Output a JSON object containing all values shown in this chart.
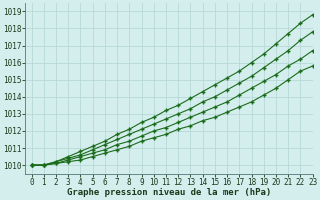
{
  "xlabel": "Graphe pression niveau de la mer (hPa)",
  "xlim": [
    -0.5,
    23.0
  ],
  "ylim": [
    1009.5,
    1019.5
  ],
  "yticks": [
    1010,
    1011,
    1012,
    1013,
    1014,
    1015,
    1016,
    1017,
    1018,
    1019
  ],
  "xticks": [
    0,
    1,
    2,
    3,
    4,
    5,
    6,
    7,
    8,
    9,
    10,
    11,
    12,
    13,
    14,
    15,
    16,
    17,
    18,
    19,
    20,
    21,
    22,
    23
  ],
  "background_color": "#d4eeee",
  "grid_color": "#b8d8d8",
  "lines": [
    [
      1010.0,
      1010.0,
      1010.1,
      1010.2,
      1010.3,
      1010.5,
      1010.7,
      1010.9,
      1011.1,
      1011.4,
      1011.6,
      1011.8,
      1012.1,
      1012.3,
      1012.6,
      1012.8,
      1013.1,
      1013.4,
      1013.7,
      1014.1,
      1014.5,
      1015.0,
      1015.5,
      1015.8
    ],
    [
      1010.0,
      1010.0,
      1010.1,
      1010.3,
      1010.5,
      1010.7,
      1010.9,
      1011.2,
      1011.4,
      1011.7,
      1012.0,
      1012.2,
      1012.5,
      1012.8,
      1013.1,
      1013.4,
      1013.7,
      1014.1,
      1014.5,
      1014.9,
      1015.3,
      1015.8,
      1016.2,
      1016.7
    ],
    [
      1010.0,
      1010.0,
      1010.2,
      1010.4,
      1010.6,
      1010.9,
      1011.2,
      1011.5,
      1011.8,
      1012.1,
      1012.4,
      1012.7,
      1013.0,
      1013.3,
      1013.7,
      1014.0,
      1014.4,
      1014.8,
      1015.2,
      1015.7,
      1016.2,
      1016.7,
      1017.3,
      1017.8
    ],
    [
      1010.0,
      1010.0,
      1010.2,
      1010.5,
      1010.8,
      1011.1,
      1011.4,
      1011.8,
      1012.1,
      1012.5,
      1012.8,
      1013.2,
      1013.5,
      1013.9,
      1014.3,
      1014.7,
      1015.1,
      1015.5,
      1016.0,
      1016.5,
      1017.1,
      1017.7,
      1018.3,
      1018.8
    ]
  ],
  "line_colors": [
    "#1a6b1a",
    "#1a6b1a",
    "#1a6b1a",
    "#1a6b1a"
  ],
  "tick_fontsize": 5.5,
  "label_fontsize": 6.5,
  "label_fontweight": "bold",
  "marker": "+",
  "markersize": 3.5,
  "linewidth": 0.8
}
